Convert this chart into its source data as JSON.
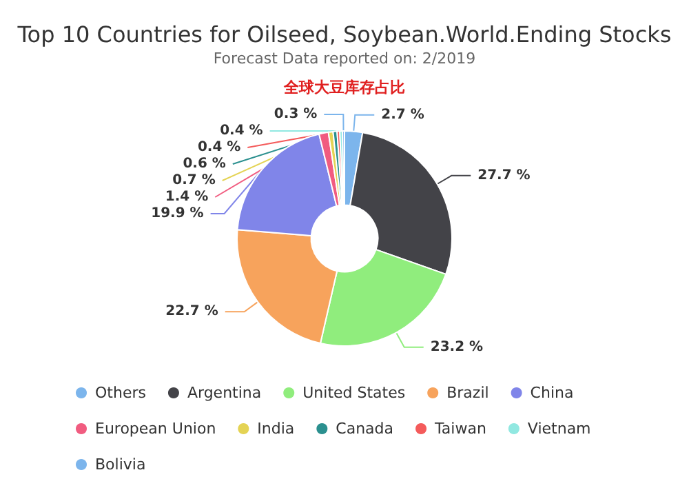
{
  "chart_data": {
    "type": "donut",
    "title": "Top 10 Countries for Oilseed, Soybean.World.Ending Stocks",
    "subtitle": "Forecast Data reported on: 2/2019",
    "annotations": [
      "全球大豆库存占比"
    ],
    "categories": [
      "Others",
      "Argentina",
      "United States",
      "Brazil",
      "China",
      "European Union",
      "India",
      "Canada",
      "Taiwan",
      "Vietnam",
      "Bolivia"
    ],
    "values": [
      2.7,
      27.7,
      23.2,
      22.7,
      19.9,
      1.4,
      0.7,
      0.6,
      0.4,
      0.4,
      0.3
    ],
    "value_labels": [
      "2.7 %",
      "27.7 %",
      "23.2 %",
      "22.7 %",
      "19.9 %",
      "1.4 %",
      "0.7 %",
      "0.6 %",
      "0.4 %",
      "0.4 %",
      "0.3 %"
    ],
    "colors": [
      "#7cb5ec",
      "#434348",
      "#90ed7d",
      "#f7a35c",
      "#8085e9",
      "#f15c80",
      "#e4d354",
      "#2b908f",
      "#f45b5b",
      "#91e8e1",
      "#7cb5ec"
    ],
    "legend": "bottom"
  }
}
